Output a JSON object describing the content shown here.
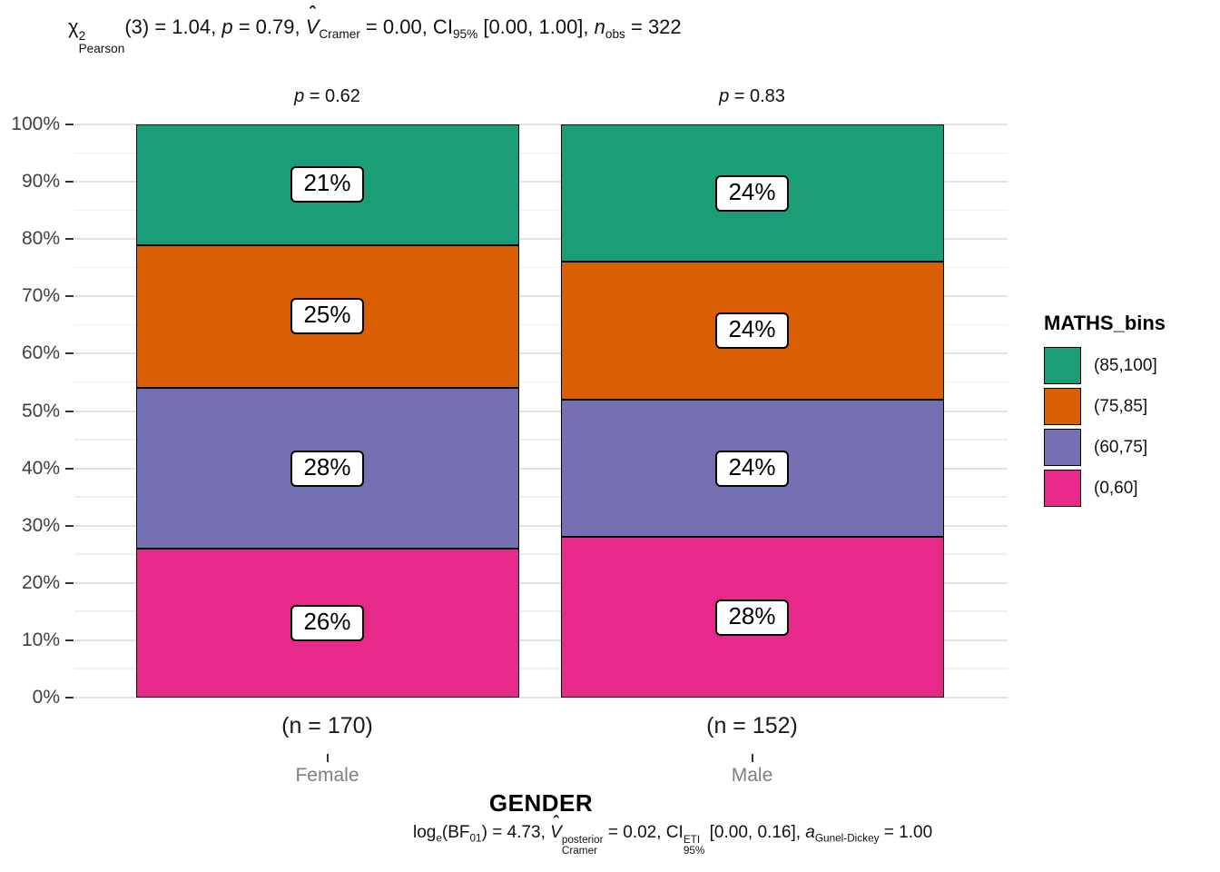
{
  "stats_title": {
    "chi": "χ",
    "chi_sup": "2",
    "chi_sub": "Pearson",
    "seg1": "(3) = 1.04, ",
    "p": "p",
    "seg2": " = 0.79, ",
    "hat": "ˆ",
    "V": "V",
    "v_sub": "Cramer",
    "seg3": " = 0.00, CI",
    "ci_sub": "95%",
    "seg4": " [0.00, 1.00], ",
    "n": "n",
    "n_sub": "obs",
    "seg5": " = 322"
  },
  "caption": {
    "log": "log",
    "log_sub": "e",
    "seg1": "(BF",
    "bf_sub": "01",
    "seg2": ") = 4.73, ",
    "hat": "ˆ",
    "V": "V",
    "v_sup": "posterior",
    "v_sub": "Cramer",
    "seg3": " = 0.02, CI",
    "ci_sup": "ETI",
    "ci_sub": "95%",
    "seg4": " [0.00, 0.16], ",
    "a": "a",
    "a_sub": "Gunel-Dickey",
    "seg5": " = 1.00"
  },
  "chart_data": {
    "type": "bar",
    "subtype": "stacked-percent",
    "title": "χ²Pearson(3) = 1.04, p = 0.79, V̂Cramer = 0.00, CI95% [0.00, 1.00], nobs = 322",
    "caption": "loge(BF01) = 4.73, V̂posteriorCramer = 0.02, CIETI95% [0.00, 0.16], aGunel-Dickey = 1.00",
    "xlabel": "GENDER",
    "ylabel": "",
    "categories": [
      "Female",
      "Male"
    ],
    "category_n": [
      170,
      152
    ],
    "n_labels": [
      "(n = 170)",
      "(n = 152)"
    ],
    "prop_tests": [
      {
        "italic": "p",
        "text": " = 0.62"
      },
      {
        "italic": "p",
        "text": " = 0.83"
      }
    ],
    "series": [
      {
        "name": "(85,100]",
        "color": "#1B9E77",
        "values": [
          21,
          24
        ]
      },
      {
        "name": "(75,85]",
        "color": "#D95F02",
        "values": [
          25,
          24
        ]
      },
      {
        "name": "(60,75]",
        "color": "#7570B3",
        "values": [
          28,
          24
        ]
      },
      {
        "name": "(0,60]",
        "color": "#E7298A",
        "values": [
          26,
          28
        ]
      }
    ],
    "value_suffix": "%",
    "ylim": [
      0,
      100
    ],
    "y_ticks": [
      0,
      10,
      20,
      30,
      40,
      50,
      60,
      70,
      80,
      90,
      100
    ],
    "y_minor_step": 5,
    "grid": true,
    "legend_title": "MATHS_bins",
    "legend_position": "right",
    "colors": {
      "axis_text": "#404040",
      "category_text": "#7f7f7f",
      "grid_major": "#e3e3e3",
      "grid_minor": "#efefef",
      "bar_outline": "#000000"
    }
  }
}
